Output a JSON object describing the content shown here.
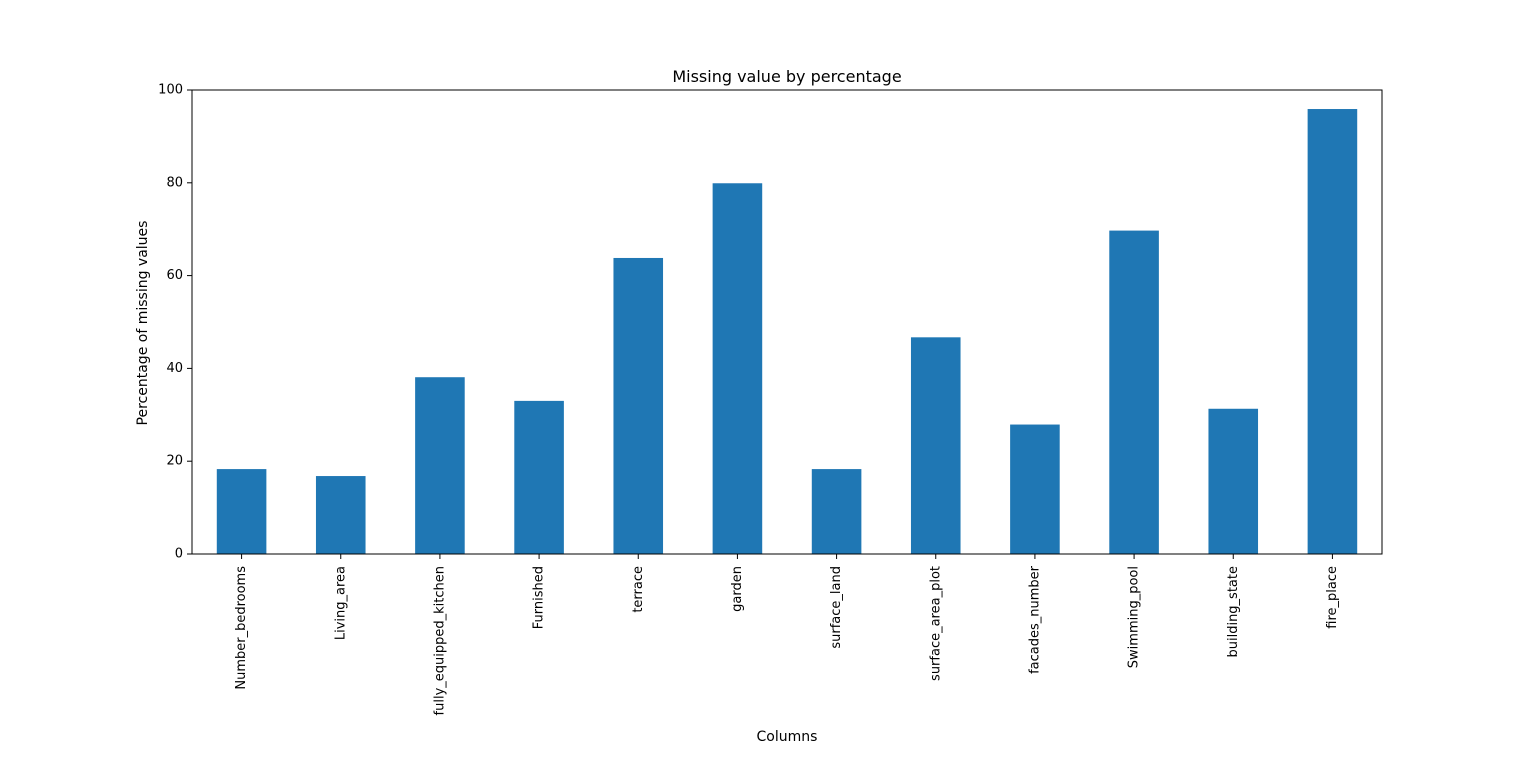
{
  "chart_data": {
    "type": "bar",
    "title": "Missing value by percentage",
    "xlabel": "Columns",
    "ylabel": "Percentage of missing values",
    "categories": [
      "Number_bedrooms",
      "Living_area",
      "fully_equipped_kitchen",
      "Furnished",
      "terrace",
      "garden",
      "surface_land",
      "surface_area_plot",
      "facades_number",
      "Swimming_pool",
      "building_state",
      "fire_place"
    ],
    "values": [
      18.3,
      16.8,
      38.1,
      33.0,
      63.8,
      79.9,
      18.3,
      46.7,
      27.9,
      69.7,
      31.3,
      95.9
    ],
    "ylim": [
      0,
      100
    ],
    "yticks": [
      0,
      20,
      40,
      60,
      80,
      100
    ],
    "grid": false,
    "bar_color": "#1f77b4"
  }
}
